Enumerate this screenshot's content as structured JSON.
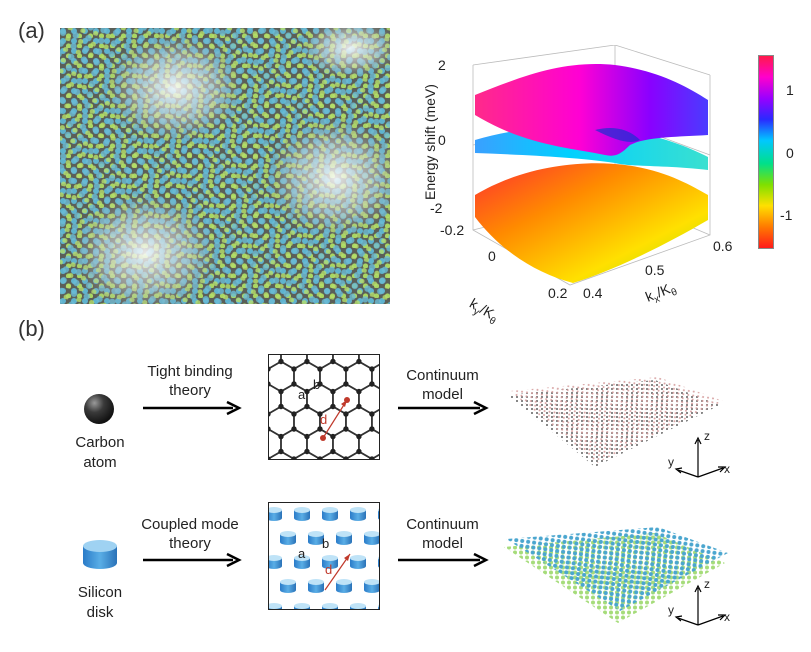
{
  "panel_a": {
    "label": "(a)",
    "plot": {
      "ylabel": "Energy shift (meV)",
      "z_ticks": [
        "2",
        "0",
        "-2"
      ],
      "ky_ticks": [
        "-0.2",
        "0",
        "0.2"
      ],
      "ky_label": "k",
      "ky_sub": "y",
      "ky_den": "/K",
      "ky_den_sub": "θ",
      "kx_ticks": [
        "0.4",
        "0.5",
        "0.6"
      ],
      "kx_label": "k",
      "kx_sub": "x",
      "kx_den": "/K",
      "kx_den_sub": "θ"
    },
    "colorbar": {
      "ticks": [
        "1",
        "0",
        "-1"
      ],
      "colors": [
        "#ff1a4a",
        "#ff00cc",
        "#9a00ff",
        "#2a2aff",
        "#00c8ff",
        "#00e08a",
        "#7fe000",
        "#ffe000",
        "#ff7a00",
        "#ff1a1a"
      ]
    }
  },
  "panel_b": {
    "label": "(b)",
    "row1": {
      "object_label_1": "Carbon",
      "object_label_2": "atom",
      "arrow1_label_1": "Tight binding",
      "arrow1_label_2": "theory",
      "lattice_label_a": "a",
      "lattice_label_b": "b",
      "lattice_label_d": "d",
      "arrow2_label_1": "Continuum",
      "arrow2_label_2": "model",
      "axis_z": "z",
      "axis_y": "y",
      "axis_x": "x"
    },
    "row2": {
      "object_label_1": "Silicon",
      "object_label_2": "disk",
      "arrow1_label_1": "Coupled mode",
      "arrow1_label_2": "theory",
      "lattice_label_a": "a",
      "lattice_label_b": "b",
      "lattice_label_d": "d",
      "arrow2_label_1": "Continuum",
      "arrow2_label_2": "model",
      "axis_z": "z",
      "axis_y": "y",
      "axis_x": "x"
    }
  }
}
